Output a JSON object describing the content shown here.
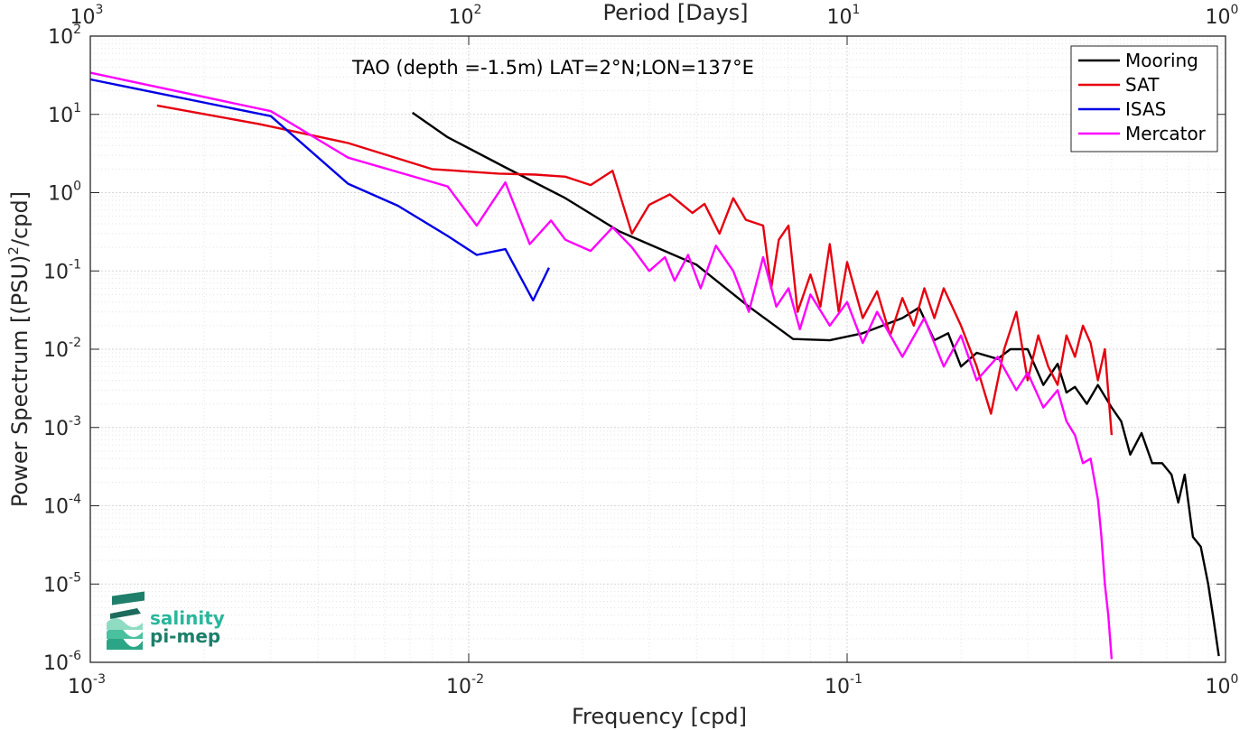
{
  "chart_data": {
    "type": "line",
    "title": "TAO (depth =-1.5m) LAT=2°N;LON=137°E",
    "xlabel": "Frequency [cpd]",
    "ylabel_main": "Power Spectrum [(PSU)",
    "ylabel_sup": "2",
    "ylabel_tail": "/cpd]",
    "top_axis_label": "Period [Days]",
    "xscale": "log",
    "yscale": "log",
    "xlim": [
      0.001,
      1
    ],
    "ylim": [
      1e-06,
      100
    ],
    "grid": true,
    "legend_position": "top-right",
    "x_ticks": [
      {
        "value": 0.001,
        "base": "10",
        "exp": "-3"
      },
      {
        "value": 0.01,
        "base": "10",
        "exp": "-2"
      },
      {
        "value": 0.1,
        "base": "10",
        "exp": "-1"
      },
      {
        "value": 1,
        "base": "10",
        "exp": "0"
      }
    ],
    "y_ticks": [
      {
        "value": 100,
        "base": "10",
        "exp": "2"
      },
      {
        "value": 10,
        "base": "10",
        "exp": "1"
      },
      {
        "value": 1,
        "base": "10",
        "exp": "0"
      },
      {
        "value": 0.1,
        "base": "10",
        "exp": "-1"
      },
      {
        "value": 0.01,
        "base": "10",
        "exp": "-2"
      },
      {
        "value": 0.001,
        "base": "10",
        "exp": "-3"
      },
      {
        "value": 0.0001,
        "base": "10",
        "exp": "-4"
      },
      {
        "value": 1e-05,
        "base": "10",
        "exp": "-5"
      },
      {
        "value": 1e-06,
        "base": "10",
        "exp": "-6"
      }
    ],
    "top_ticks": [
      {
        "freq": 0.001,
        "base": "10",
        "exp": "3"
      },
      {
        "freq": 0.01,
        "base": "10",
        "exp": "2"
      },
      {
        "freq": 0.1,
        "base": "10",
        "exp": "1"
      },
      {
        "freq": 1,
        "base": "10",
        "exp": "0"
      }
    ],
    "series": [
      {
        "name": "Mooring",
        "color": "#000000",
        "points": [
          [
            0.0071,
            10.5
          ],
          [
            0.0088,
            5.1
          ],
          [
            0.0125,
            2.1
          ],
          [
            0.018,
            0.85
          ],
          [
            0.025,
            0.32
          ],
          [
            0.04,
            0.12
          ],
          [
            0.055,
            0.035
          ],
          [
            0.072,
            0.0135
          ],
          [
            0.09,
            0.013
          ],
          [
            0.11,
            0.016
          ],
          [
            0.14,
            0.025
          ],
          [
            0.155,
            0.034
          ],
          [
            0.17,
            0.013
          ],
          [
            0.185,
            0.016
          ],
          [
            0.2,
            0.006
          ],
          [
            0.22,
            0.009
          ],
          [
            0.25,
            0.0075
          ],
          [
            0.27,
            0.01
          ],
          [
            0.3,
            0.01
          ],
          [
            0.33,
            0.0035
          ],
          [
            0.36,
            0.0065
          ],
          [
            0.38,
            0.0028
          ],
          [
            0.4,
            0.0033
          ],
          [
            0.43,
            0.002
          ],
          [
            0.46,
            0.0035
          ],
          [
            0.5,
            0.0018
          ],
          [
            0.53,
            0.0012
          ],
          [
            0.56,
            0.00045
          ],
          [
            0.6,
            0.00085
          ],
          [
            0.64,
            0.00035
          ],
          [
            0.68,
            0.00035
          ],
          [
            0.72,
            0.00025
          ],
          [
            0.75,
            0.00011
          ],
          [
            0.78,
            0.00025
          ],
          [
            0.82,
            4e-05
          ],
          [
            0.86,
            3e-05
          ],
          [
            0.9,
            1e-05
          ],
          [
            0.93,
            3.5e-06
          ],
          [
            0.96,
            1.2e-06
          ]
        ]
      },
      {
        "name": "SAT",
        "color": "#e6000f",
        "points": [
          [
            0.0015,
            13
          ],
          [
            0.0028,
            7.5
          ],
          [
            0.0048,
            4.3
          ],
          [
            0.008,
            2.0
          ],
          [
            0.012,
            1.75
          ],
          [
            0.015,
            1.7
          ],
          [
            0.018,
            1.6
          ],
          [
            0.021,
            1.25
          ],
          [
            0.024,
            1.9
          ],
          [
            0.027,
            0.3
          ],
          [
            0.03,
            0.7
          ],
          [
            0.034,
            0.95
          ],
          [
            0.039,
            0.55
          ],
          [
            0.042,
            0.72
          ],
          [
            0.046,
            0.3
          ],
          [
            0.05,
            0.85
          ],
          [
            0.054,
            0.45
          ],
          [
            0.06,
            0.38
          ],
          [
            0.063,
            0.06
          ],
          [
            0.066,
            0.25
          ],
          [
            0.07,
            0.38
          ],
          [
            0.074,
            0.03
          ],
          [
            0.08,
            0.09
          ],
          [
            0.085,
            0.035
          ],
          [
            0.09,
            0.22
          ],
          [
            0.095,
            0.03
          ],
          [
            0.1,
            0.13
          ],
          [
            0.11,
            0.025
          ],
          [
            0.12,
            0.055
          ],
          [
            0.13,
            0.015
          ],
          [
            0.14,
            0.045
          ],
          [
            0.15,
            0.02
          ],
          [
            0.16,
            0.06
          ],
          [
            0.17,
            0.025
          ],
          [
            0.18,
            0.06
          ],
          [
            0.2,
            0.02
          ],
          [
            0.22,
            0.006
          ],
          [
            0.24,
            0.0015
          ],
          [
            0.26,
            0.01
          ],
          [
            0.28,
            0.03
          ],
          [
            0.3,
            0.004
          ],
          [
            0.32,
            0.015
          ],
          [
            0.34,
            0.006
          ],
          [
            0.36,
            0.0035
          ],
          [
            0.38,
            0.015
          ],
          [
            0.4,
            0.008
          ],
          [
            0.42,
            0.02
          ],
          [
            0.44,
            0.012
          ],
          [
            0.46,
            0.004
          ],
          [
            0.48,
            0.01
          ],
          [
            0.5,
            0.0008
          ]
        ]
      },
      {
        "name": "ISAS",
        "color": "#0000e6",
        "points": [
          [
            0.001,
            28
          ],
          [
            0.003,
            9.5
          ],
          [
            0.0048,
            1.3
          ],
          [
            0.0065,
            0.68
          ],
          [
            0.0088,
            0.28
          ],
          [
            0.0105,
            0.16
          ],
          [
            0.0125,
            0.19
          ],
          [
            0.0148,
            0.042
          ],
          [
            0.0163,
            0.11
          ]
        ]
      },
      {
        "name": "Mercator",
        "color": "#ff00ff",
        "points": [
          [
            0.001,
            34
          ],
          [
            0.003,
            11
          ],
          [
            0.0048,
            2.8
          ],
          [
            0.0088,
            1.2
          ],
          [
            0.0105,
            0.38
          ],
          [
            0.0125,
            1.35
          ],
          [
            0.0145,
            0.22
          ],
          [
            0.0165,
            0.44
          ],
          [
            0.018,
            0.25
          ],
          [
            0.021,
            0.18
          ],
          [
            0.024,
            0.36
          ],
          [
            0.027,
            0.2
          ],
          [
            0.03,
            0.1
          ],
          [
            0.033,
            0.15
          ],
          [
            0.035,
            0.075
          ],
          [
            0.038,
            0.16
          ],
          [
            0.041,
            0.06
          ],
          [
            0.045,
            0.21
          ],
          [
            0.05,
            0.1
          ],
          [
            0.055,
            0.03
          ],
          [
            0.06,
            0.15
          ],
          [
            0.065,
            0.035
          ],
          [
            0.07,
            0.06
          ],
          [
            0.075,
            0.018
          ],
          [
            0.08,
            0.05
          ],
          [
            0.09,
            0.02
          ],
          [
            0.1,
            0.04
          ],
          [
            0.11,
            0.012
          ],
          [
            0.12,
            0.03
          ],
          [
            0.14,
            0.008
          ],
          [
            0.16,
            0.025
          ],
          [
            0.18,
            0.006
          ],
          [
            0.2,
            0.015
          ],
          [
            0.22,
            0.004
          ],
          [
            0.25,
            0.008
          ],
          [
            0.28,
            0.003
          ],
          [
            0.3,
            0.005
          ],
          [
            0.33,
            0.0018
          ],
          [
            0.36,
            0.003
          ],
          [
            0.38,
            0.0012
          ],
          [
            0.4,
            0.0008
          ],
          [
            0.42,
            0.00035
          ],
          [
            0.44,
            0.0004
          ],
          [
            0.46,
            0.00012
          ],
          [
            0.47,
            4e-05
          ],
          [
            0.48,
            1e-05
          ],
          [
            0.49,
            4e-06
          ],
          [
            0.5,
            1.1e-06
          ]
        ]
      }
    ]
  },
  "logo": {
    "line1": "salinity",
    "line2": "pi-mep",
    "color": "#29b79c"
  }
}
